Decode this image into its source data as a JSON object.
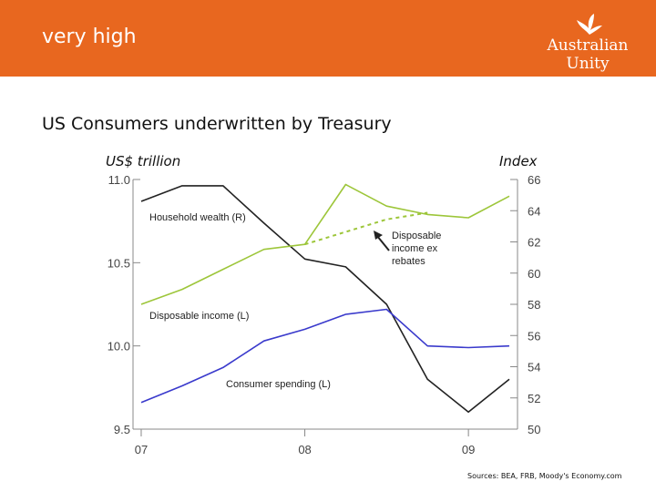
{
  "header": {
    "slide_title": "very high",
    "logo_text": "Australian Unity",
    "banner_color": "#e8671f"
  },
  "heading": "US Consumers underwritten by Treasury",
  "axis_units": {
    "left": "US$ trillion",
    "right": "Index"
  },
  "sources": "Sources: BEA, FRB, Moody's Economy.com",
  "chart_data": {
    "type": "line",
    "x_ticks": [
      "07",
      "08",
      "09"
    ],
    "x_tick_values": [
      2007.0,
      2008.0,
      2009.0
    ],
    "xlim": [
      2006.95,
      2009.3
    ],
    "left_axis": {
      "label": "US$ trillion",
      "ylim": [
        9.5,
        11.0
      ],
      "ticks": [
        "11.0",
        "10.5",
        "10.0",
        "9.5"
      ],
      "tick_values": [
        11.0,
        10.5,
        10.0,
        9.5
      ]
    },
    "right_axis": {
      "label": "Index",
      "ylim": [
        50,
        66
      ],
      "ticks": [
        "66",
        "64",
        "62",
        "60",
        "58",
        "56",
        "54",
        "52",
        "50"
      ],
      "tick_values": [
        66,
        64,
        62,
        60,
        58,
        56,
        54,
        52,
        50
      ]
    },
    "series": [
      {
        "name": "Household wealth (R)",
        "axis": "right",
        "color": "#222222",
        "dash": false,
        "points": [
          [
            2007.0,
            64.6
          ],
          [
            2007.25,
            65.6
          ],
          [
            2007.5,
            65.6
          ],
          [
            2007.75,
            63.2
          ],
          [
            2008.0,
            60.9
          ],
          [
            2008.25,
            60.4
          ],
          [
            2008.5,
            58.0
          ],
          [
            2008.75,
            53.2
          ],
          [
            2009.0,
            51.1
          ],
          [
            2009.25,
            53.2
          ]
        ]
      },
      {
        "name": "Disposable income (L)",
        "axis": "left",
        "color": "#9dc63a",
        "dash": false,
        "points": [
          [
            2007.0,
            10.25
          ],
          [
            2007.25,
            10.34
          ],
          [
            2007.5,
            10.46
          ],
          [
            2007.75,
            10.58
          ],
          [
            2008.0,
            10.61
          ],
          [
            2008.25,
            10.97
          ],
          [
            2008.5,
            10.84
          ],
          [
            2008.75,
            10.79
          ],
          [
            2009.0,
            10.77
          ],
          [
            2009.25,
            10.9
          ]
        ]
      },
      {
        "name": "Disposable income ex rebates",
        "axis": "left",
        "color": "#9dc63a",
        "dash": true,
        "points": [
          [
            2008.0,
            10.61
          ],
          [
            2008.5,
            10.76
          ],
          [
            2008.75,
            10.8
          ]
        ]
      },
      {
        "name": "Consumer spending (L)",
        "axis": "left",
        "color": "#3a3acc",
        "dash": false,
        "points": [
          [
            2007.0,
            9.66
          ],
          [
            2007.25,
            9.76
          ],
          [
            2007.5,
            9.87
          ],
          [
            2007.75,
            10.03
          ],
          [
            2008.0,
            10.1
          ],
          [
            2008.25,
            10.19
          ],
          [
            2008.5,
            10.22
          ],
          [
            2008.75,
            10.0
          ],
          [
            2009.0,
            9.99
          ],
          [
            2009.25,
            10.0
          ]
        ]
      }
    ],
    "annotations": [
      {
        "text": "Household wealth (R)"
      },
      {
        "text": "Disposable income (L)"
      },
      {
        "text": "Consumer spending (L)"
      },
      {
        "lines": [
          "Disposable",
          "income ex",
          "rebates"
        ]
      }
    ]
  }
}
